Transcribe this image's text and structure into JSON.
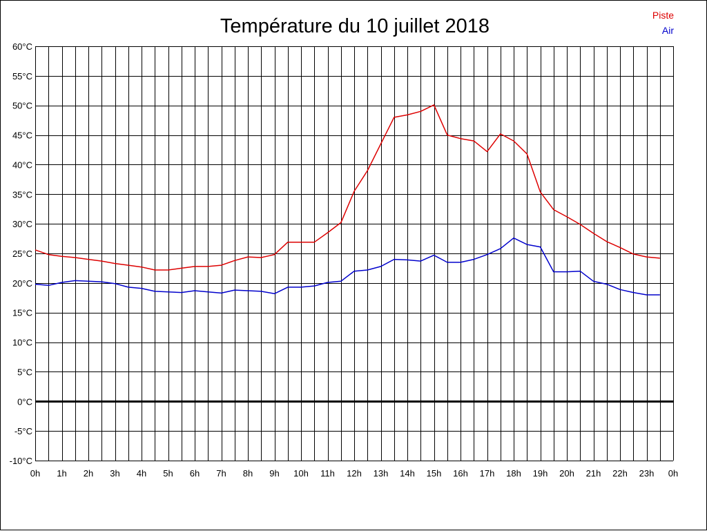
{
  "chart_data": {
    "type": "line",
    "title": "Température du 10 juillet 2018",
    "xlabel": "",
    "ylabel": "",
    "x_tick_labels": [
      "0h",
      "1h",
      "2h",
      "3h",
      "4h",
      "5h",
      "6h",
      "7h",
      "8h",
      "9h",
      "10h",
      "11h",
      "12h",
      "13h",
      "14h",
      "15h",
      "16h",
      "17h",
      "18h",
      "19h",
      "20h",
      "21h",
      "22h",
      "23h",
      "0h"
    ],
    "y_ticks": [
      -10,
      -5,
      0,
      5,
      10,
      15,
      20,
      25,
      30,
      35,
      40,
      45,
      50,
      55,
      60
    ],
    "y_tick_labels": [
      "-10°C",
      "-5°C",
      "0°C",
      "5°C",
      "10°C",
      "15°C",
      "20°C",
      "25°C",
      "30°C",
      "35°C",
      "40°C",
      "45°C",
      "50°C",
      "55°C",
      "60°C"
    ],
    "xlim": [
      0,
      24
    ],
    "ylim": [
      -10,
      60
    ],
    "grid": true,
    "legend_position": "top-right",
    "x": [
      0,
      0.5,
      1,
      1.5,
      2,
      2.5,
      3,
      3.5,
      4,
      4.5,
      5,
      5.5,
      6,
      6.5,
      7,
      7.5,
      8,
      8.5,
      9,
      9.5,
      10,
      10.5,
      11,
      11.5,
      12,
      12.5,
      13,
      13.5,
      14,
      14.5,
      15,
      15.5,
      16,
      16.5,
      17,
      17.5,
      18,
      18.5,
      19,
      19.5,
      20,
      20.5,
      21,
      21.5,
      22,
      22.5,
      23,
      23.5
    ],
    "series": [
      {
        "name": "Piste",
        "color": "#dd0000",
        "values": [
          25.6,
          24.8,
          24.5,
          24.3,
          24.0,
          23.7,
          23.3,
          23.0,
          22.7,
          22.2,
          22.2,
          22.5,
          22.8,
          22.8,
          23.0,
          23.8,
          24.4,
          24.3,
          24.8,
          26.9,
          26.9,
          26.9,
          28.5,
          30.2,
          35.5,
          39.0,
          43.5,
          48.0,
          48.4,
          49.0,
          50.1,
          45.0,
          44.4,
          44.0,
          42.2,
          45.2,
          44.0,
          41.8,
          35.4,
          32.4,
          31.2,
          29.9,
          28.4,
          27.0,
          26.0,
          24.9,
          24.4,
          24.2
        ]
      },
      {
        "name": "Air",
        "color": "#0000cc",
        "values": [
          19.8,
          19.6,
          20.1,
          20.4,
          20.3,
          20.2,
          19.9,
          19.3,
          19.1,
          18.6,
          18.5,
          18.4,
          18.7,
          18.5,
          18.3,
          18.8,
          18.7,
          18.6,
          18.2,
          19.3,
          19.3,
          19.5,
          20.1,
          20.3,
          22.0,
          22.2,
          22.8,
          24.0,
          23.9,
          23.7,
          24.7,
          23.5,
          23.5,
          24.0,
          24.8,
          25.8,
          27.6,
          26.5,
          26.1,
          21.9,
          21.9,
          22.0,
          20.3,
          19.8,
          18.9,
          18.4,
          18.0,
          18.0
        ]
      }
    ],
    "zero_line_color": "#000000"
  }
}
